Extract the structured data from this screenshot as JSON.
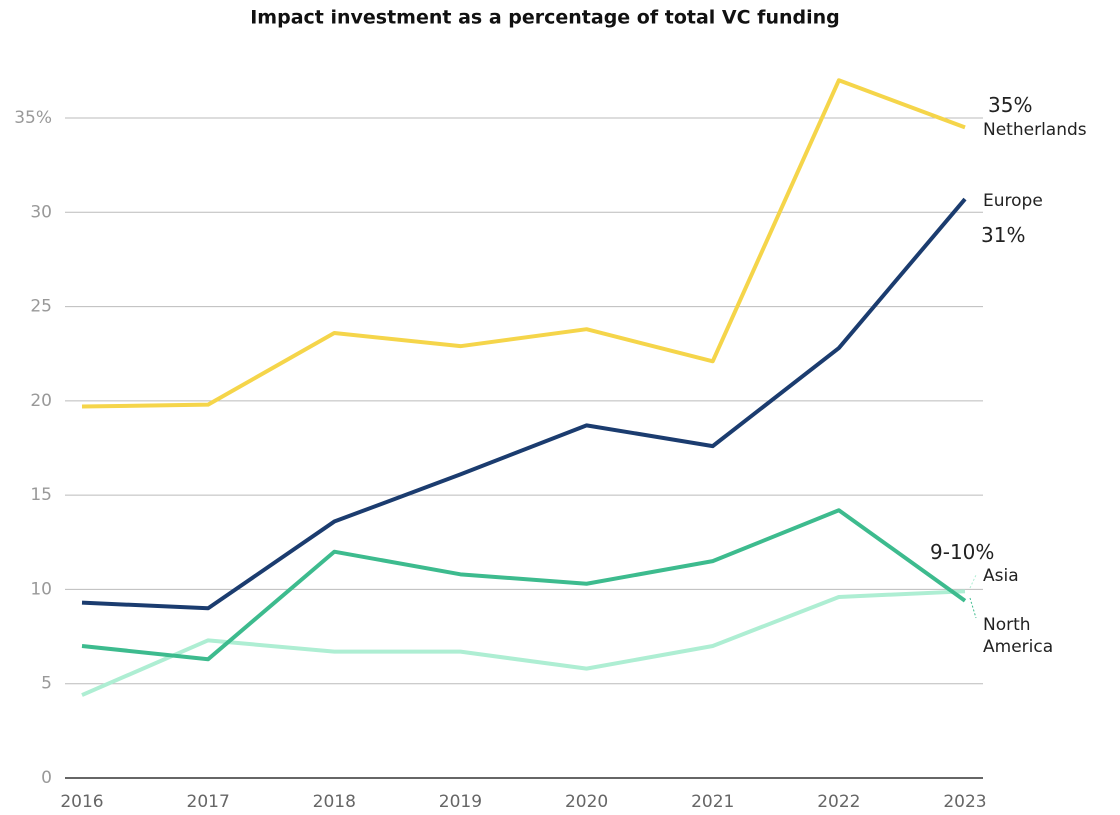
{
  "chart_data": {
    "type": "line",
    "title": "Impact investment as a percentage of total VC funding",
    "x": [
      2016,
      2017,
      2018,
      2019,
      2020,
      2021,
      2022,
      2023
    ],
    "xlim": [
      2016,
      2023
    ],
    "xticks": [
      2016,
      2017,
      2018,
      2019,
      2020,
      2021,
      2022,
      2023
    ],
    "ylim": [
      0,
      38
    ],
    "yticks": [
      0,
      5,
      10,
      15,
      20,
      25,
      30,
      {
        "value": 35,
        "label": "35%"
      }
    ],
    "grid": true,
    "series": [
      {
        "name": "Netherlands",
        "color": "#f5d54a",
        "values": [
          19.7,
          19.8,
          23.6,
          22.9,
          23.8,
          22.1,
          37.0,
          34.5
        ]
      },
      {
        "name": "Europe",
        "color": "#1b3c6f",
        "values": [
          9.3,
          9.0,
          13.6,
          16.1,
          18.7,
          17.6,
          22.8,
          30.7
        ]
      },
      {
        "name": "North America",
        "color": "#3dbb8e",
        "values": [
          7.0,
          6.3,
          12.0,
          10.8,
          10.3,
          11.5,
          14.2,
          9.4
        ]
      },
      {
        "name": "Asia",
        "color": "#aeeed3",
        "values": [
          4.4,
          7.3,
          6.7,
          6.7,
          5.8,
          7.0,
          9.6,
          9.9
        ]
      }
    ],
    "annotations": [
      "35%",
      "31%",
      "9-10%"
    ]
  }
}
